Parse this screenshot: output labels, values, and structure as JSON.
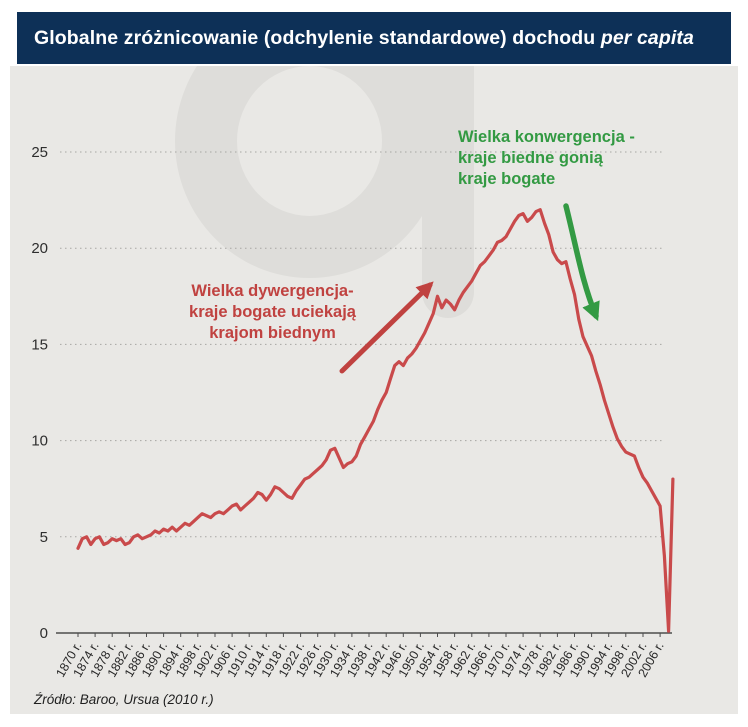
{
  "header": {
    "title_main": "Globalne zróżnicowanie (odchylenie standardowe) dochodu ",
    "title_italic": "per capita"
  },
  "source": "Źródło: Baroo, Ursua (2010 r.)",
  "annotations": {
    "divergence": {
      "color": "#c04240",
      "lines": [
        "Wielka dywergencja-",
        "kraje bogate uciekają",
        "krajom biednym"
      ]
    },
    "convergence": {
      "color": "#339a43",
      "lines": [
        "Wielka konwergencja -",
        "kraje biedne gonią",
        "kraje bogate"
      ]
    }
  },
  "watermark": "obserwator-finansowy-logo",
  "chart_data": {
    "type": "line",
    "title": "Globalne zróżnicowanie (odchylenie standardowe) dochodu per capita",
    "ylabel": "",
    "xlabel": "",
    "ylim": [
      0,
      25
    ],
    "ytick_values": [
      0,
      5,
      10,
      15,
      20,
      25
    ],
    "gridline_values": [
      5,
      10,
      15,
      20,
      25
    ],
    "grid_style": "dotted horizontal",
    "line_color": "#c94a4b",
    "xtick_years": [
      1870,
      1874,
      1878,
      1882,
      1886,
      1890,
      1894,
      1898,
      1902,
      1906,
      1910,
      1914,
      1918,
      1922,
      1926,
      1930,
      1934,
      1938,
      1942,
      1946,
      1950,
      1954,
      1958,
      1962,
      1966,
      1970,
      1974,
      1978,
      1982,
      1986,
      1990,
      1994,
      1998,
      2002,
      2006
    ],
    "xtick_labels": [
      "1870 r.",
      "1874 r.",
      "1878 r.",
      "1882 r.",
      "1886 r.",
      "1890 r.",
      "1894 r.",
      "1898 r.",
      "1902 r.",
      "1906 r.",
      "1910 r.",
      "1914 r.",
      "1918 r.",
      "1922 r.",
      "1926 r.",
      "1930 r.",
      "1934 r.",
      "1938 r.",
      "1942 r.",
      "1946 r.",
      "1950 r.",
      "1954 r.",
      "1958 r.",
      "1962 r.",
      "1966 r.",
      "1970 r.",
      "1974 r.",
      "1978 r.",
      "1982 r.",
      "1986 r.",
      "1990 r.",
      "1994 r.",
      "1998 r.",
      "2002 r.",
      "2006 r."
    ],
    "x_years": {
      "start": 1870,
      "end": 2009,
      "step": 1
    },
    "values": [
      4.4,
      4.9,
      5.0,
      4.6,
      4.9,
      5.0,
      4.6,
      4.7,
      4.9,
      4.8,
      4.9,
      4.6,
      4.7,
      5.0,
      5.1,
      4.9,
      5.0,
      5.1,
      5.3,
      5.2,
      5.4,
      5.3,
      5.5,
      5.3,
      5.5,
      5.7,
      5.6,
      5.8,
      6.0,
      6.2,
      6.1,
      6.0,
      6.2,
      6.3,
      6.2,
      6.4,
      6.6,
      6.7,
      6.4,
      6.6,
      6.8,
      7.0,
      7.3,
      7.2,
      6.9,
      7.2,
      7.6,
      7.5,
      7.3,
      7.1,
      7.0,
      7.4,
      7.7,
      8.0,
      8.1,
      8.3,
      8.5,
      8.7,
      9.0,
      9.5,
      9.6,
      9.1,
      8.6,
      8.8,
      8.9,
      9.2,
      9.8,
      10.2,
      10.6,
      11.0,
      11.6,
      12.1,
      12.5,
      13.2,
      13.9,
      14.1,
      13.9,
      14.3,
      14.5,
      14.8,
      15.2,
      15.6,
      16.1,
      16.6,
      17.5,
      16.9,
      17.3,
      17.1,
      16.8,
      17.3,
      17.7,
      18.0,
      18.3,
      18.7,
      19.1,
      19.3,
      19.6,
      19.9,
      20.3,
      20.4,
      20.6,
      21.0,
      21.4,
      21.7,
      21.8,
      21.4,
      21.6,
      21.9,
      22.0,
      21.3,
      20.7,
      19.8,
      19.4,
      19.2,
      19.3,
      18.4,
      17.6,
      16.3,
      15.4,
      14.9,
      14.4,
      13.6,
      12.9,
      12.1,
      11.4,
      10.7,
      10.1,
      9.7,
      9.4,
      9.3,
      9.2,
      8.6,
      8.1,
      7.8,
      7.4,
      7.0,
      6.6,
      4.0,
      0.1,
      8.0
    ]
  }
}
